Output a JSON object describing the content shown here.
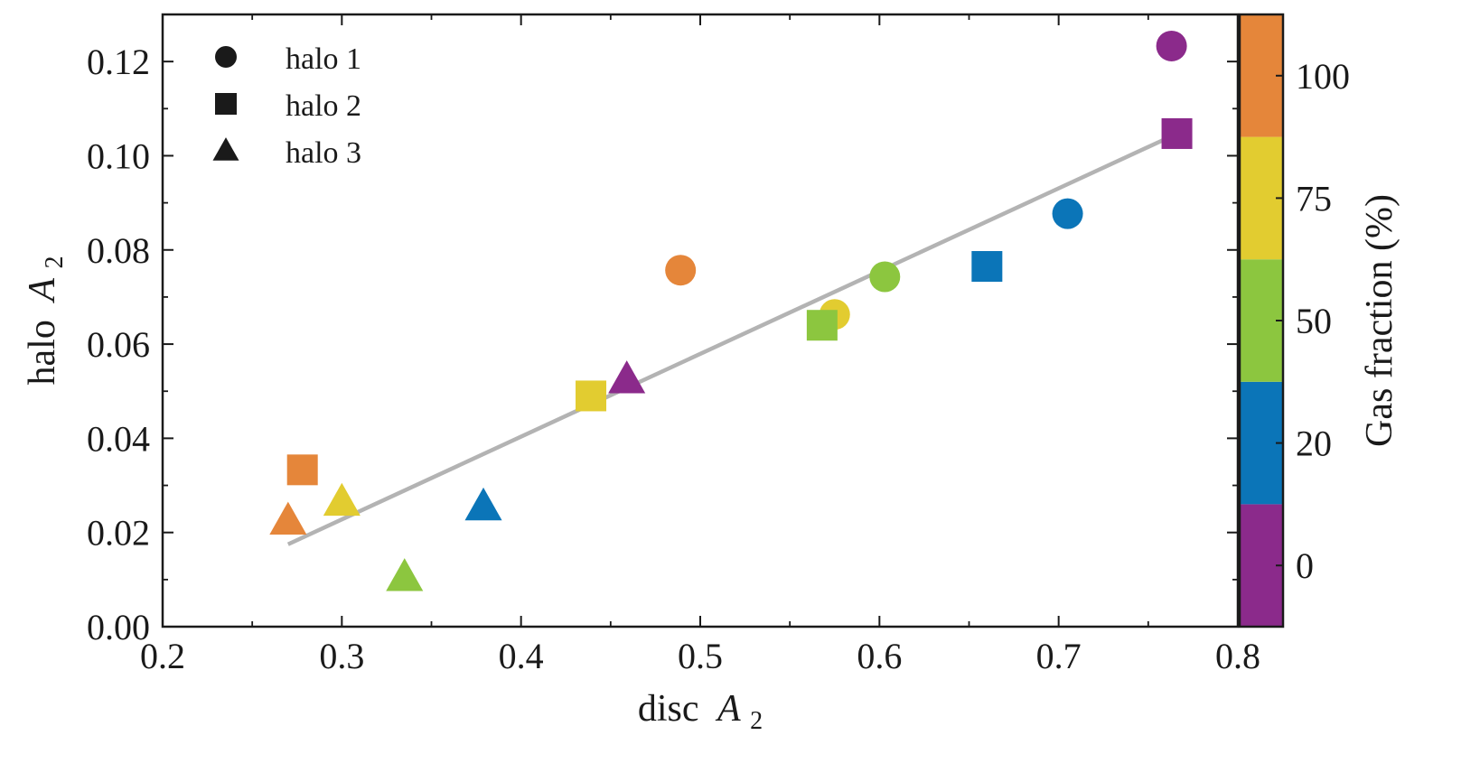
{
  "chart_data": {
    "type": "scatter",
    "title": "",
    "xlabel": "disc",
    "xlabel_var": "A",
    "xlabel_sub": "2",
    "ylabel": "halo",
    "ylabel_var": "A",
    "ylabel_sub": "2",
    "xlim": [
      0.2,
      0.8
    ],
    "ylim": [
      0.0,
      0.13
    ],
    "xticks": [
      0.2,
      0.3,
      0.4,
      0.5,
      0.6,
      0.7,
      0.8
    ],
    "xtick_labels": [
      "0.2",
      "0.3",
      "0.4",
      "0.5",
      "0.6",
      "0.7",
      "0.8"
    ],
    "yticks": [
      0.0,
      0.02,
      0.04,
      0.06,
      0.08,
      0.1,
      0.12
    ],
    "ytick_labels": [
      "0.00",
      "0.02",
      "0.04",
      "0.06",
      "0.08",
      "0.10",
      "0.12"
    ],
    "grid": false,
    "legend_position": "top-left",
    "legend": [
      {
        "label": "halo 1",
        "marker": "circle"
      },
      {
        "label": "halo 2",
        "marker": "square"
      },
      {
        "label": "halo 3",
        "marker": "triangle"
      }
    ],
    "fit_line": {
      "x": [
        0.27,
        0.765
      ],
      "y": [
        0.0175,
        0.1045
      ],
      "color": "#b3b3b3"
    },
    "colorbar": {
      "label": "Gas fraction (%)",
      "levels": [
        {
          "value": "0",
          "color": "#8b2a8b"
        },
        {
          "value": "20",
          "color": "#0b75b8"
        },
        {
          "value": "50",
          "color": "#8cc63f"
        },
        {
          "value": "75",
          "color": "#e2cc30"
        },
        {
          "value": "100",
          "color": "#e5863a"
        }
      ]
    },
    "series": [
      {
        "name": "halo 1",
        "marker": "circle",
        "points": [
          {
            "x": 0.763,
            "y": 0.1233,
            "gas": "0"
          },
          {
            "x": 0.705,
            "y": 0.0877,
            "gas": "20"
          },
          {
            "x": 0.603,
            "y": 0.0743,
            "gas": "50"
          },
          {
            "x": 0.575,
            "y": 0.0663,
            "gas": "75"
          },
          {
            "x": 0.489,
            "y": 0.0757,
            "gas": "100"
          }
        ]
      },
      {
        "name": "halo 2",
        "marker": "square",
        "points": [
          {
            "x": 0.766,
            "y": 0.1047,
            "gas": "0"
          },
          {
            "x": 0.66,
            "y": 0.0765,
            "gas": "20"
          },
          {
            "x": 0.568,
            "y": 0.064,
            "gas": "50"
          },
          {
            "x": 0.439,
            "y": 0.049,
            "gas": "75"
          },
          {
            "x": 0.278,
            "y": 0.0333,
            "gas": "100"
          }
        ]
      },
      {
        "name": "halo 3",
        "marker": "triangle",
        "points": [
          {
            "x": 0.459,
            "y": 0.0525,
            "gas": "0"
          },
          {
            "x": 0.379,
            "y": 0.0255,
            "gas": "20"
          },
          {
            "x": 0.335,
            "y": 0.0105,
            "gas": "50"
          },
          {
            "x": 0.3,
            "y": 0.0265,
            "gas": "75"
          },
          {
            "x": 0.27,
            "y": 0.0225,
            "gas": "100"
          }
        ]
      }
    ]
  }
}
